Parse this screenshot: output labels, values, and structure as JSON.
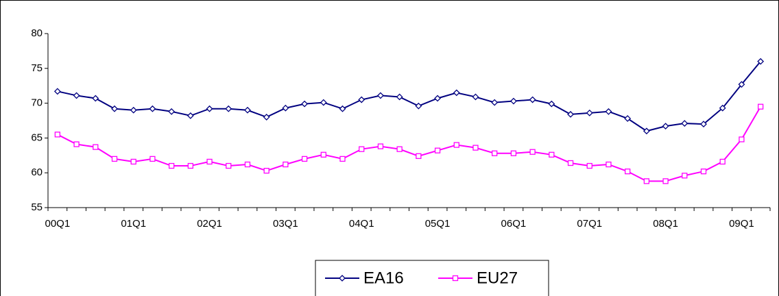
{
  "chart_data": {
    "type": "line",
    "categories": [
      "00Q1",
      null,
      null,
      null,
      "01Q1",
      null,
      null,
      null,
      "02Q1",
      null,
      null,
      null,
      "03Q1",
      null,
      null,
      null,
      "04Q1",
      null,
      null,
      null,
      "05Q1",
      null,
      null,
      null,
      "06Q1",
      null,
      null,
      null,
      "07Q1",
      null,
      null,
      null,
      "08Q1",
      null,
      null,
      null,
      "09Q1",
      null
    ],
    "series": [
      {
        "name": "EA16",
        "color": "#000080",
        "marker": "diamond",
        "values": [
          71.7,
          71.1,
          70.7,
          69.2,
          69.0,
          69.2,
          68.8,
          68.2,
          69.2,
          69.2,
          69.0,
          68.0,
          69.3,
          69.9,
          70.1,
          69.2,
          70.5,
          71.1,
          70.9,
          69.6,
          70.7,
          71.5,
          70.9,
          70.1,
          70.3,
          70.5,
          69.9,
          68.4,
          68.6,
          68.8,
          67.8,
          66.0,
          66.7,
          67.1,
          67.0,
          69.3,
          72.7,
          76.0
        ]
      },
      {
        "name": "EU27",
        "color": "#ff00ff",
        "marker": "square",
        "values": [
          65.5,
          64.1,
          63.7,
          62.0,
          61.6,
          62.0,
          61.0,
          61.0,
          61.6,
          61.0,
          61.2,
          60.3,
          61.2,
          62.0,
          62.6,
          62.0,
          63.4,
          63.8,
          63.4,
          62.4,
          63.2,
          64.0,
          63.6,
          62.8,
          62.8,
          63.0,
          62.6,
          61.4,
          61.0,
          61.2,
          60.2,
          58.8,
          58.8,
          59.6,
          60.2,
          61.6,
          64.8,
          69.5
        ]
      }
    ],
    "ylim": [
      55,
      80
    ],
    "yticks": [
      55,
      60,
      65,
      70,
      75,
      80
    ],
    "grid": false,
    "legend": "bottom"
  }
}
